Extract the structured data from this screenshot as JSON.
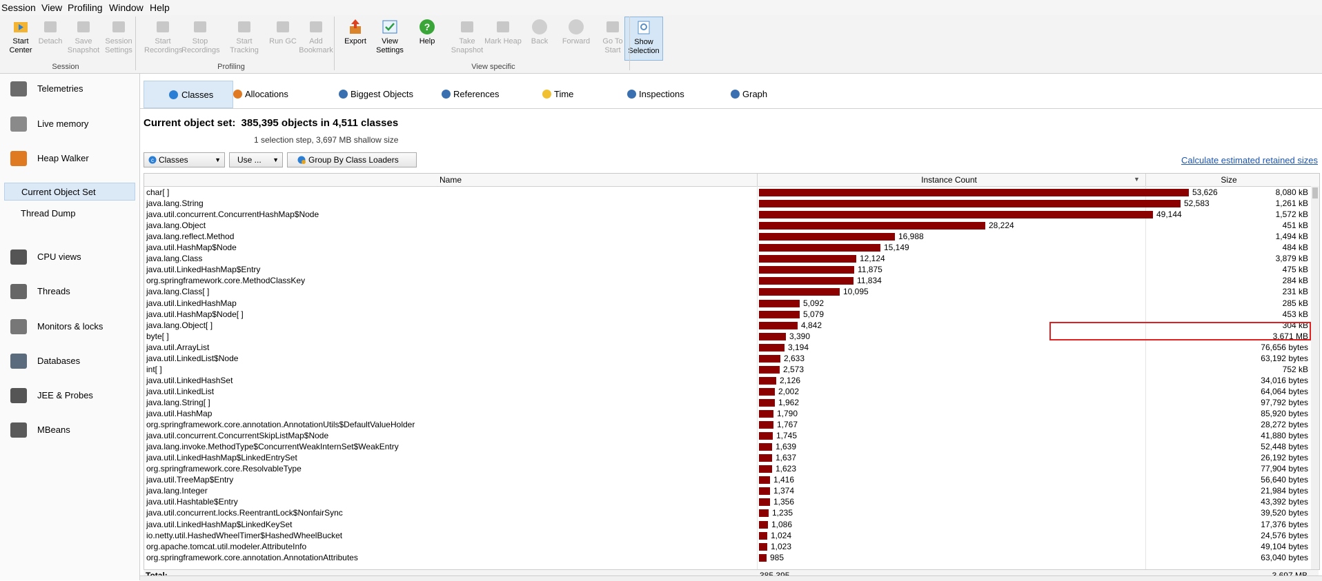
{
  "menu": [
    "Session",
    "View",
    "Profiling",
    "Window",
    "Help"
  ],
  "toolbar": {
    "buttons": [
      {
        "label": "Start Center",
        "icon": "start-center-icon",
        "enabled": true
      },
      {
        "label": "Detach",
        "icon": "detach-icon",
        "enabled": false
      },
      {
        "label": "Save Snapshot",
        "icon": "save-snapshot-icon",
        "enabled": false
      },
      {
        "label": "Session Settings",
        "icon": "session-settings-icon",
        "enabled": false
      },
      {
        "label": "Start Recordings",
        "icon": "start-recordings-icon",
        "enabled": false
      },
      {
        "label": "Stop Recordings",
        "icon": "stop-recordings-icon",
        "enabled": false
      },
      {
        "label": "Start Tracking",
        "icon": "start-tracking-icon",
        "enabled": false
      },
      {
        "label": "Run GC",
        "icon": "run-gc-icon",
        "enabled": false
      },
      {
        "label": "Add Bookmark",
        "icon": "add-bookmark-icon",
        "enabled": false
      },
      {
        "label": "Export",
        "icon": "export-icon",
        "enabled": true
      },
      {
        "label": "View Settings",
        "icon": "view-settings-icon",
        "enabled": true
      },
      {
        "label": "Help",
        "icon": "help-icon",
        "enabled": true
      },
      {
        "label": "Take Snapshot",
        "icon": "take-snapshot-icon",
        "enabled": false
      },
      {
        "label": "Mark Heap",
        "icon": "mark-heap-icon",
        "enabled": false
      },
      {
        "label": "Back",
        "icon": "back-icon",
        "enabled": false
      },
      {
        "label": "Forward",
        "icon": "forward-icon",
        "enabled": false
      },
      {
        "label": "Go To Start",
        "icon": "go-to-start-icon",
        "enabled": false
      },
      {
        "label": "Show Selection",
        "icon": "show-selection-icon",
        "enabled": true,
        "active": true
      }
    ],
    "groups": [
      "Session",
      "Profiling",
      "View specific"
    ]
  },
  "sidebar": {
    "items": [
      {
        "label": "Telemetries",
        "icon": "telemetries-icon"
      },
      {
        "label": "Live memory",
        "icon": "live-memory-icon"
      },
      {
        "label": "Heap Walker",
        "icon": "heap-walker-icon"
      },
      {
        "label": "CPU views",
        "icon": "cpu-views-icon"
      },
      {
        "label": "Threads",
        "icon": "threads-icon"
      },
      {
        "label": "Monitors & locks",
        "icon": "monitors-locks-icon"
      },
      {
        "label": "Databases",
        "icon": "databases-icon"
      },
      {
        "label": "JEE & Probes",
        "icon": "jee-probes-icon"
      },
      {
        "label": "MBeans",
        "icon": "mbeans-icon"
      }
    ],
    "subitems": [
      {
        "label": "Current Object Set",
        "selected": true
      },
      {
        "label": "Thread Dump",
        "selected": false
      }
    ]
  },
  "tabs": [
    {
      "label": "Classes",
      "icon": "classes-icon",
      "selected": true
    },
    {
      "label": "Allocations",
      "icon": "allocations-icon",
      "selected": false
    },
    {
      "label": "Biggest Objects",
      "icon": "biggest-objects-icon",
      "selected": false
    },
    {
      "label": "References",
      "icon": "references-icon",
      "selected": false
    },
    {
      "label": "Time",
      "icon": "time-icon",
      "selected": false
    },
    {
      "label": "Inspections",
      "icon": "inspections-icon",
      "selected": false
    },
    {
      "label": "Graph",
      "icon": "graph-icon",
      "selected": false
    }
  ],
  "object_set": {
    "title_prefix": "Current object set:",
    "title_value": "385,395 objects in 4,511 classes",
    "subtitle": "1 selection step, 3,697 MB shallow size"
  },
  "controls": {
    "view_combo": "Classes",
    "use_combo": "Use ...",
    "group_button": "Group By Class Loaders",
    "retained_link": "Calculate estimated retained sizes"
  },
  "table": {
    "columns": [
      "Name",
      "Instance Count",
      "Size"
    ],
    "max_count": 53626,
    "rows": [
      {
        "name": "char[ ]",
        "count": "53,626",
        "count_value": 53626,
        "size": "8,080 kB"
      },
      {
        "name": "java.lang.String",
        "count": "52,583",
        "count_value": 52583,
        "size": "1,261 kB"
      },
      {
        "name": "java.util.concurrent.ConcurrentHashMap$Node",
        "count": "49,144",
        "count_value": 49144,
        "size": "1,572 kB"
      },
      {
        "name": "java.lang.Object",
        "count": "28,224",
        "count_value": 28224,
        "size": "451 kB"
      },
      {
        "name": "java.lang.reflect.Method",
        "count": "16,988",
        "count_value": 16988,
        "size": "1,494 kB"
      },
      {
        "name": "java.util.HashMap$Node",
        "count": "15,149",
        "count_value": 15149,
        "size": "484 kB"
      },
      {
        "name": "java.lang.Class",
        "count": "12,124",
        "count_value": 12124,
        "size": "3,879 kB"
      },
      {
        "name": "java.util.LinkedHashMap$Entry",
        "count": "11,875",
        "count_value": 11875,
        "size": "475 kB"
      },
      {
        "name": "org.springframework.core.MethodClassKey",
        "count": "11,834",
        "count_value": 11834,
        "size": "284 kB"
      },
      {
        "name": "java.lang.Class[ ]",
        "count": "10,095",
        "count_value": 10095,
        "size": "231 kB"
      },
      {
        "name": "java.util.LinkedHashMap",
        "count": "5,092",
        "count_value": 5092,
        "size": "285 kB"
      },
      {
        "name": "java.util.HashMap$Node[ ]",
        "count": "5,079",
        "count_value": 5079,
        "size": "453 kB"
      },
      {
        "name": "java.lang.Object[ ]",
        "count": "4,842",
        "count_value": 4842,
        "size": "304 kB"
      },
      {
        "name": "byte[ ]",
        "count": "3,390",
        "count_value": 3390,
        "size": "3,671 MB"
      },
      {
        "name": "java.util.ArrayList",
        "count": "3,194",
        "count_value": 3194,
        "size": "76,656 bytes"
      },
      {
        "name": "java.util.LinkedList$Node",
        "count": "2,633",
        "count_value": 2633,
        "size": "63,192 bytes"
      },
      {
        "name": "int[ ]",
        "count": "2,573",
        "count_value": 2573,
        "size": "752 kB"
      },
      {
        "name": "java.util.LinkedHashSet",
        "count": "2,126",
        "count_value": 2126,
        "size": "34,016 bytes"
      },
      {
        "name": "java.util.LinkedList",
        "count": "2,002",
        "count_value": 2002,
        "size": "64,064 bytes"
      },
      {
        "name": "java.lang.String[ ]",
        "count": "1,962",
        "count_value": 1962,
        "size": "97,792 bytes"
      },
      {
        "name": "java.util.HashMap",
        "count": "1,790",
        "count_value": 1790,
        "size": "85,920 bytes"
      },
      {
        "name": "org.springframework.core.annotation.AnnotationUtils$DefaultValueHolder",
        "count": "1,767",
        "count_value": 1767,
        "size": "28,272 bytes"
      },
      {
        "name": "java.util.concurrent.ConcurrentSkipListMap$Node",
        "count": "1,745",
        "count_value": 1745,
        "size": "41,880 bytes"
      },
      {
        "name": "java.lang.invoke.MethodType$ConcurrentWeakInternSet$WeakEntry",
        "count": "1,639",
        "count_value": 1639,
        "size": "52,448 bytes"
      },
      {
        "name": "java.util.LinkedHashMap$LinkedEntrySet",
        "count": "1,637",
        "count_value": 1637,
        "size": "26,192 bytes"
      },
      {
        "name": "org.springframework.core.ResolvableType",
        "count": "1,623",
        "count_value": 1623,
        "size": "77,904 bytes"
      },
      {
        "name": "java.util.TreeMap$Entry",
        "count": "1,416",
        "count_value": 1416,
        "size": "56,640 bytes"
      },
      {
        "name": "java.lang.Integer",
        "count": "1,374",
        "count_value": 1374,
        "size": "21,984 bytes"
      },
      {
        "name": "java.util.Hashtable$Entry",
        "count": "1,356",
        "count_value": 1356,
        "size": "43,392 bytes"
      },
      {
        "name": "java.util.concurrent.locks.ReentrantLock$NonfairSync",
        "count": "1,235",
        "count_value": 1235,
        "size": "39,520 bytes"
      },
      {
        "name": "java.util.LinkedHashMap$LinkedKeySet",
        "count": "1,086",
        "count_value": 1086,
        "size": "17,376 bytes"
      },
      {
        "name": "io.netty.util.HashedWheelTimer$HashedWheelBucket",
        "count": "1,024",
        "count_value": 1024,
        "size": "24,576 bytes"
      },
      {
        "name": "org.apache.tomcat.util.modeler.AttributeInfo",
        "count": "1,023",
        "count_value": 1023,
        "size": "49,104 bytes"
      },
      {
        "name": "org.springframework.core.annotation.AnnotationAttributes",
        "count": "985",
        "count_value": 985,
        "size": "63,040 bytes"
      }
    ],
    "total": {
      "label": "Total:",
      "count": "385,395",
      "size": "3,697 MB"
    },
    "highlighted_row": 13
  },
  "colors": {
    "bar": "#8b0000",
    "highlight": "#e02020",
    "selection": "#dbe8f6",
    "link": "#1c55b0"
  }
}
